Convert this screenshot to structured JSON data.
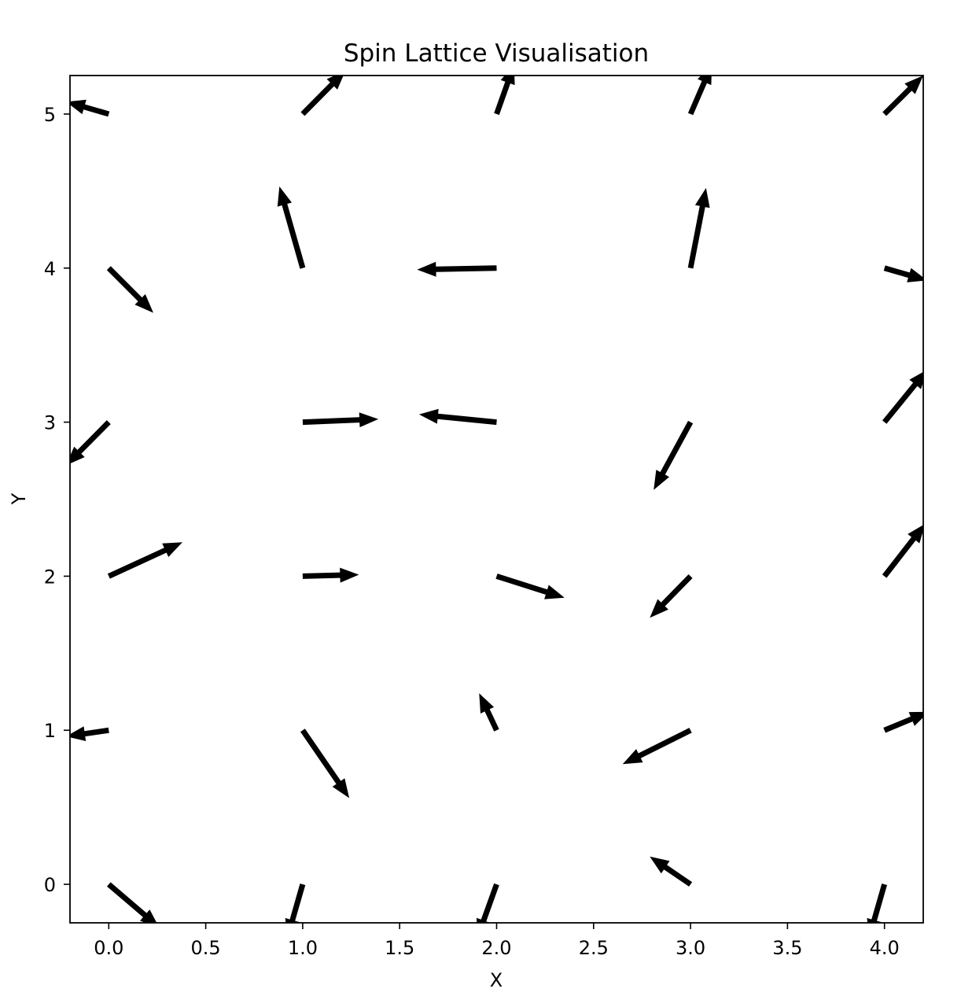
{
  "chart_data": {
    "type": "quiver",
    "title": "Spin Lattice Visualisation",
    "xlabel": "X",
    "ylabel": "Y",
    "xlim": [
      -0.2,
      4.2
    ],
    "ylim": [
      -0.25,
      5.25
    ],
    "xticks": [
      0.0,
      0.5,
      1.0,
      1.5,
      2.0,
      2.5,
      3.0,
      3.5,
      4.0
    ],
    "xtick_labels": [
      "0.0",
      "0.5",
      "1.0",
      "1.5",
      "2.0",
      "2.5",
      "3.0",
      "3.5",
      "4.0"
    ],
    "yticks": [
      0,
      1,
      2,
      3,
      4,
      5
    ],
    "ytick_labels": [
      "0",
      "1",
      "2",
      "3",
      "4",
      "5"
    ],
    "grid": false,
    "arrow_color": "#000000",
    "arrows": [
      {
        "x": 0,
        "y": 0,
        "u": 0.26,
        "v": -0.28
      },
      {
        "x": 1,
        "y": 0,
        "u": -0.08,
        "v": -0.35
      },
      {
        "x": 2,
        "y": 0,
        "u": -0.1,
        "v": -0.35
      },
      {
        "x": 3,
        "y": 0,
        "u": -0.21,
        "v": 0.18
      },
      {
        "x": 4,
        "y": 0,
        "u": -0.08,
        "v": -0.35
      },
      {
        "x": 0,
        "y": 1,
        "u": -0.22,
        "v": -0.04
      },
      {
        "x": 1,
        "y": 1,
        "u": 0.24,
        "v": -0.44
      },
      {
        "x": 2,
        "y": 1,
        "u": -0.09,
        "v": 0.24
      },
      {
        "x": 3,
        "y": 1,
        "u": -0.35,
        "v": -0.22
      },
      {
        "x": 4,
        "y": 1,
        "u": 0.23,
        "v": 0.12
      },
      {
        "x": 0,
        "y": 2,
        "u": 0.38,
        "v": 0.22
      },
      {
        "x": 1,
        "y": 2,
        "u": 0.29,
        "v": 0.01
      },
      {
        "x": 2,
        "y": 2,
        "u": 0.35,
        "v": -0.14
      },
      {
        "x": 3,
        "y": 2,
        "u": -0.21,
        "v": -0.27
      },
      {
        "x": 4,
        "y": 2,
        "u": 0.21,
        "v": 0.34
      },
      {
        "x": 0,
        "y": 3,
        "u": -0.22,
        "v": -0.28
      },
      {
        "x": 1,
        "y": 3,
        "u": 0.39,
        "v": 0.02
      },
      {
        "x": 2,
        "y": 3,
        "u": -0.4,
        "v": 0.05
      },
      {
        "x": 3,
        "y": 3,
        "u": -0.19,
        "v": -0.44
      },
      {
        "x": 4,
        "y": 3,
        "u": 0.22,
        "v": 0.34
      },
      {
        "x": 0,
        "y": 4,
        "u": 0.23,
        "v": -0.29
      },
      {
        "x": 1,
        "y": 4,
        "u": -0.12,
        "v": 0.53
      },
      {
        "x": 2,
        "y": 4,
        "u": -0.41,
        "v": -0.01
      },
      {
        "x": 3,
        "y": 4,
        "u": 0.08,
        "v": 0.52
      },
      {
        "x": 4,
        "y": 4,
        "u": 0.22,
        "v": -0.08
      },
      {
        "x": 0,
        "y": 5,
        "u": -0.22,
        "v": 0.08
      },
      {
        "x": 1,
        "y": 5,
        "u": 0.22,
        "v": 0.28
      },
      {
        "x": 2,
        "y": 5,
        "u": 0.09,
        "v": 0.32
      },
      {
        "x": 3,
        "y": 5,
        "u": 0.11,
        "v": 0.32
      },
      {
        "x": 4,
        "y": 5,
        "u": 0.2,
        "v": 0.25
      }
    ]
  }
}
